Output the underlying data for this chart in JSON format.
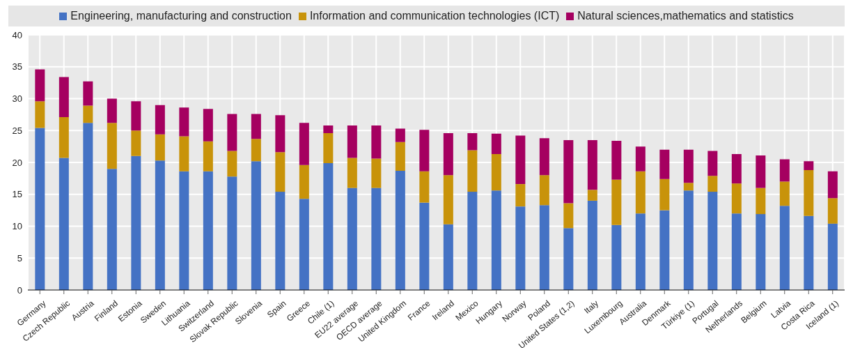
{
  "chart_data": {
    "type": "bar",
    "stacked": true,
    "categories": [
      "Germany",
      "Czech Republic",
      "Austria",
      "Finland",
      "Estonia",
      "Sweden",
      "Lithuania",
      "Switzerland",
      "Slovak Republic",
      "Slovenia",
      "Spain",
      "Greece",
      "Chile (1)",
      "EU22 average",
      "OECD average",
      "United Kingdom",
      "France",
      "Ireland",
      "Mexico",
      "Hungary",
      "Norway",
      "Poland",
      "United States (1,2)",
      "Italy",
      "Luxembourg",
      "Australia",
      "Denmark",
      "Türkiye  (1)",
      "Portugal",
      "Netherlands",
      "Belgium",
      "Latvia",
      "Costa Rica",
      "Iceland (1)"
    ],
    "series": [
      {
        "name": "Engineering, manufacturing and construction",
        "color": "#4472c4",
        "values": [
          25.4,
          20.7,
          26.2,
          19.0,
          21.0,
          20.3,
          18.6,
          18.6,
          17.8,
          20.2,
          15.4,
          14.3,
          19.9,
          16.0,
          16.0,
          18.7,
          13.7,
          10.3,
          15.4,
          15.6,
          13.1,
          13.3,
          9.7,
          14.0,
          10.2,
          12.0,
          12.5,
          15.6,
          15.4,
          12.0,
          11.9,
          13.2,
          11.6,
          10.4
        ]
      },
      {
        "name": "Information and communication technologies (ICT)",
        "color": "#c8930a",
        "values": [
          4.2,
          6.4,
          2.7,
          7.2,
          4.0,
          4.1,
          5.5,
          4.7,
          4.0,
          3.5,
          6.2,
          5.3,
          4.7,
          4.7,
          4.6,
          4.5,
          4.9,
          7.7,
          6.5,
          5.7,
          3.5,
          4.7,
          3.9,
          1.7,
          7.1,
          6.6,
          4.9,
          1.2,
          2.5,
          4.7,
          4.1,
          3.8,
          7.2,
          4.0
        ]
      },
      {
        "name": "Natural sciences,mathematics and statistics",
        "color": "#a50060",
        "values": [
          5.0,
          6.3,
          3.8,
          3.8,
          4.6,
          4.6,
          4.5,
          5.1,
          5.8,
          3.9,
          5.8,
          6.6,
          1.2,
          5.1,
          5.2,
          2.1,
          6.5,
          6.6,
          2.7,
          3.2,
          7.6,
          5.8,
          9.9,
          7.8,
          6.1,
          3.9,
          4.6,
          5.2,
          3.9,
          4.6,
          5.1,
          3.5,
          1.4,
          4.2
        ]
      }
    ],
    "ylim": [
      0,
      40
    ],
    "yticks": [
      0,
      5,
      10,
      15,
      20,
      25,
      30,
      35,
      40
    ],
    "grid": true,
    "legend": "top"
  }
}
